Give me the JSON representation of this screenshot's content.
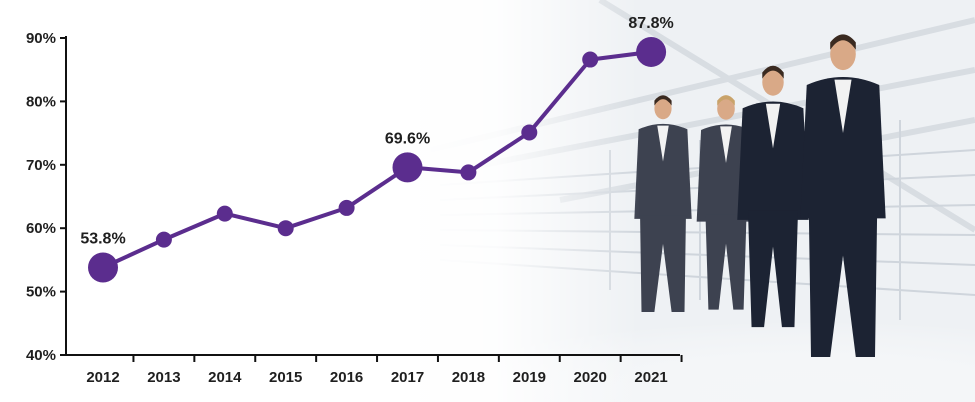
{
  "colors": {
    "line": "#5b2d8e",
    "axis": "#111111",
    "text": "#1f1f1f",
    "suit_dark": "#1c2333",
    "suit_grey": "#3d4250",
    "shirt": "#f2f2f2",
    "skin": "#d9a987",
    "hair_blonde": "#c9a36a",
    "hair_dark": "#3a2a20"
  },
  "background_photo": "business-people-walking-illustration",
  "chart_data": {
    "type": "line",
    "x": [
      "2012",
      "2013",
      "2014",
      "2015",
      "2016",
      "2017",
      "2018",
      "2019",
      "2020",
      "2021"
    ],
    "series": [
      {
        "values": [
          53.8,
          58.2,
          62.3,
          60.0,
          63.2,
          69.6,
          68.8,
          75.1,
          86.6,
          87.8
        ]
      }
    ],
    "highlighted_points": [
      {
        "x": "2012",
        "value": 53.8,
        "label": "53.8%"
      },
      {
        "x": "2017",
        "value": 69.6,
        "label": "69.6%"
      },
      {
        "x": "2021",
        "value": 87.8,
        "label": "87.8%"
      }
    ],
    "ylim": [
      40,
      90
    ],
    "yticks": [
      40,
      50,
      60,
      70,
      80,
      90
    ],
    "ytick_labels": [
      "40%",
      "50%",
      "60%",
      "70%",
      "80%",
      "90%"
    ],
    "title": "",
    "xlabel": "",
    "ylabel": "",
    "grid": false,
    "legend": "none"
  }
}
